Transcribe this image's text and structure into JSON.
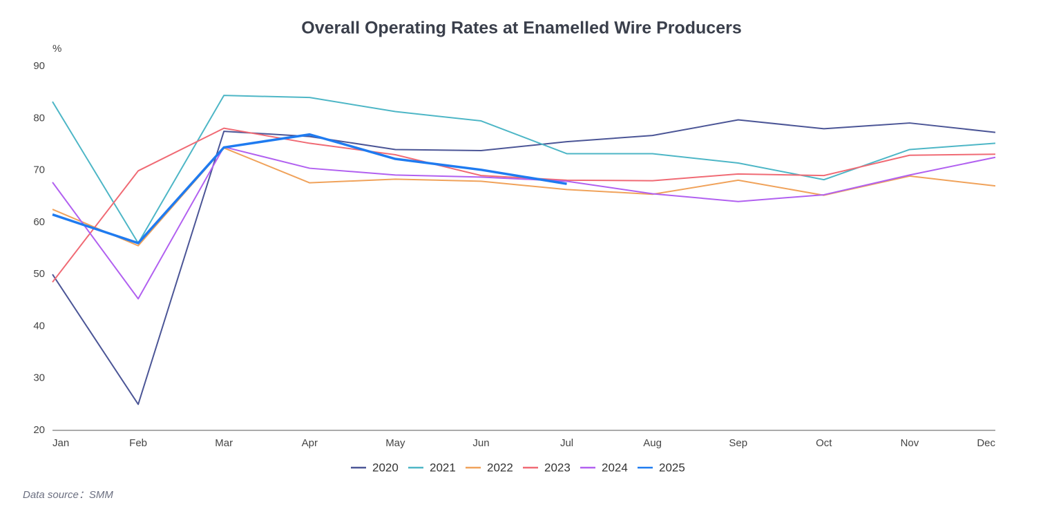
{
  "chart_data": {
    "type": "line",
    "title": "Overall Operating Rates at Enamelled Wire Producers",
    "y_unit": "%",
    "source": "Data source：SMM",
    "categories": [
      "Jan",
      "Feb",
      "Mar",
      "Apr",
      "May",
      "Jun",
      "Jul",
      "Aug",
      "Sep",
      "Oct",
      "Nov",
      "Dec"
    ],
    "ylim": [
      20,
      90
    ],
    "yticks": [
      20,
      30,
      40,
      50,
      60,
      70,
      80,
      90
    ],
    "grid": false,
    "legend": "bottom",
    "series": [
      {
        "name": "2020",
        "color": "#4b5596",
        "values": [
          50,
          25,
          77.5,
          76.5,
          74,
          73.8,
          75.5,
          76.7,
          79.7,
          78,
          79.1,
          77.3
        ]
      },
      {
        "name": "2021",
        "color": "#4db6c6",
        "values": [
          83.2,
          56,
          84.4,
          84,
          81.3,
          79.5,
          73.2,
          73.2,
          71.4,
          68.2,
          74,
          75.2
        ]
      },
      {
        "name": "2022",
        "color": "#f0a25a",
        "values": [
          62.5,
          55.5,
          74.3,
          67.6,
          68.3,
          67.9,
          66.3,
          65.4,
          68.1,
          65.2,
          68.9,
          67
        ]
      },
      {
        "name": "2023",
        "color": "#f06a74",
        "values": [
          48.5,
          69.9,
          78.1,
          75.2,
          73,
          69,
          68.1,
          68,
          69.3,
          69,
          72.9,
          73.1
        ]
      },
      {
        "name": "2024",
        "color": "#b160f0",
        "values": [
          67.7,
          45.3,
          74.5,
          70.4,
          69.1,
          68.7,
          67.9,
          65.5,
          64,
          65.3,
          69.1,
          72.5
        ]
      },
      {
        "name": "2025",
        "color": "#1f7bf0",
        "values": [
          61.5,
          56,
          74.4,
          76.9,
          72.2,
          70.1,
          67.4,
          null,
          null,
          null,
          null,
          null
        ]
      }
    ]
  }
}
